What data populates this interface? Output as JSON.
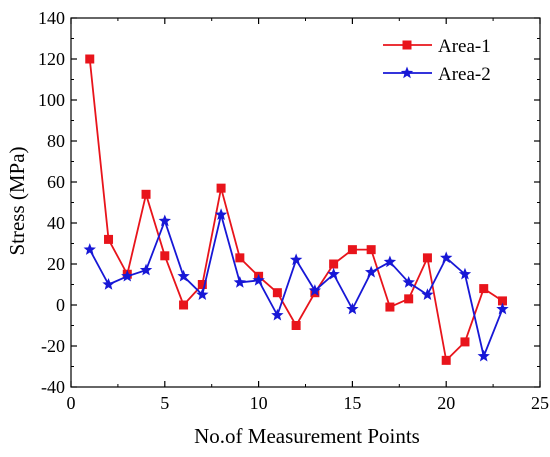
{
  "chart_data": {
    "type": "line",
    "title": "",
    "xlabel": "No.of Measurement Points",
    "ylabel": "Stress (MPa)",
    "xlim": [
      0,
      25
    ],
    "ylim": [
      -40,
      140
    ],
    "x_ticks": [
      0,
      5,
      10,
      15,
      20,
      25
    ],
    "y_ticks": [
      -40,
      -20,
      0,
      20,
      40,
      60,
      80,
      100,
      120,
      140
    ],
    "grid": false,
    "legend_position": "top-right",
    "x": [
      1,
      2,
      3,
      4,
      5,
      6,
      7,
      8,
      9,
      10,
      11,
      12,
      13,
      14,
      15,
      16,
      17,
      18,
      19,
      20,
      21,
      22,
      23
    ],
    "series": [
      {
        "name": "Area-1",
        "color": "#e8141b",
        "marker": "square",
        "values": [
          120,
          32,
          15,
          54,
          24,
          0,
          10,
          57,
          23,
          14,
          6,
          -10,
          6,
          20,
          27,
          27,
          -1,
          3,
          23,
          -27,
          -18,
          8,
          2
        ]
      },
      {
        "name": "Area-2",
        "color": "#1717d6",
        "marker": "star",
        "values": [
          27,
          10,
          14,
          17,
          41,
          14,
          5,
          44,
          11,
          12,
          -5,
          22,
          7,
          15,
          -2,
          16,
          21,
          11,
          5,
          23,
          15,
          -25,
          -2
        ]
      }
    ]
  }
}
